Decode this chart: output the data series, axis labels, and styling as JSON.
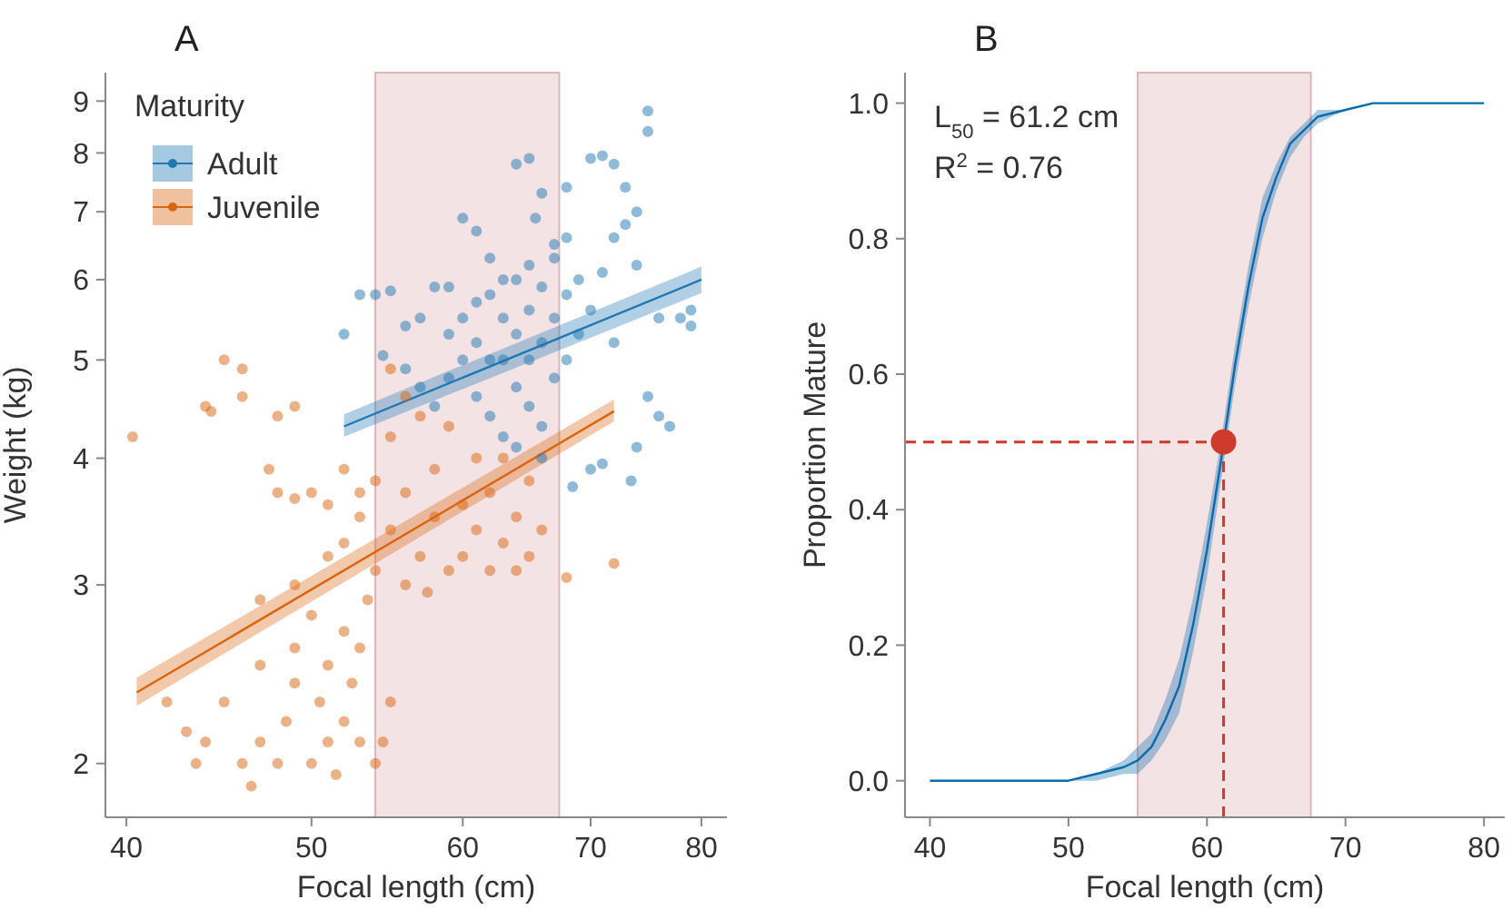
{
  "chart_data": [
    {
      "type": "scatter",
      "title": "A",
      "xlabel": "Focal length (cm)",
      "ylabel": "Weight (kg)",
      "log": "xy",
      "xlim": [
        39,
        82.5
      ],
      "xticks": [
        40,
        50,
        60,
        70,
        80
      ],
      "ylim": [
        1.77,
        9.6
      ],
      "yticks": [
        2,
        3,
        4,
        5,
        6,
        7,
        8,
        9
      ],
      "grid": false,
      "legend": "top left",
      "legend_title": "Maturity",
      "bands": [
        {
          "axis": "x",
          "from": 54,
          "to": 67.4,
          "color": "#f4e3e5"
        }
      ],
      "series": [
        {
          "name": "Adult",
          "color": "#1f78b4",
          "marker": "circle",
          "x": [
            52,
            53,
            54,
            55,
            54.5,
            56,
            57,
            58,
            59,
            60,
            61,
            62,
            64,
            65,
            66,
            65.5,
            67,
            68,
            70,
            71,
            72,
            73,
            74,
            75,
            75,
            73,
            72,
            74,
            76,
            78,
            79,
            79,
            76,
            77,
            74,
            71,
            70,
            73.5,
            68.5,
            75,
            72,
            70,
            69,
            71,
            68,
            58,
            59,
            60,
            60,
            61,
            61,
            62,
            62,
            63,
            63,
            63,
            64,
            64,
            64,
            64,
            65,
            65,
            65,
            66,
            66,
            66,
            67,
            67,
            68,
            68,
            69,
            57,
            56,
            59,
            62,
            63,
            65,
            66,
            67,
            61
          ],
          "values": [
            5.3,
            5.8,
            5.8,
            5.85,
            5.05,
            5.4,
            5.5,
            5.9,
            5.9,
            6.9,
            6.7,
            6.3,
            7.8,
            7.9,
            7.3,
            6.9,
            6.5,
            7.4,
            7.9,
            7.95,
            7.8,
            7.4,
            7.0,
            8.8,
            8.4,
            6.8,
            6.6,
            6.2,
            5.5,
            5.5,
            5.6,
            5.4,
            4.4,
            4.3,
            4.1,
            3.95,
            3.9,
            3.8,
            3.75,
            4.6,
            5.2,
            5.6,
            6.0,
            6.1,
            6.6,
            4.5,
            4.8,
            5.0,
            5.5,
            4.6,
            5.2,
            4.4,
            5.8,
            4.2,
            5.0,
            5.5,
            4.1,
            4.7,
            5.3,
            6.0,
            4.5,
            5.0,
            5.6,
            4.3,
            5.2,
            5.9,
            4.8,
            5.5,
            5.0,
            5.8,
            5.3,
            4.7,
            4.9,
            5.3,
            5.0,
            6.0,
            6.2,
            4.0,
            6.3,
            5.7
          ]
        },
        {
          "name": "Juvenile",
          "color": "#d9650f",
          "marker": "circle",
          "x": [
            40.3,
            44,
            44.3,
            45,
            46,
            46,
            48,
            49,
            47.5,
            48,
            49,
            42,
            43,
            43.5,
            44,
            45,
            46,
            46.5,
            47,
            47,
            48,
            48.5,
            49,
            49,
            50,
            50,
            50.5,
            51,
            51,
            51.5,
            52,
            52,
            52.5,
            53,
            53,
            53.5,
            54,
            55,
            54.5,
            49,
            47,
            51,
            51,
            52,
            52,
            53,
            54,
            54,
            55,
            55,
            56,
            56,
            57,
            57,
            58,
            58,
            59,
            59,
            60,
            60,
            61,
            61,
            62,
            62,
            63,
            63,
            64,
            64,
            65,
            65,
            66,
            68,
            72,
            56,
            55,
            53,
            50,
            57.5
          ],
          "values": [
            4.2,
            4.5,
            4.45,
            5.0,
            4.9,
            4.6,
            4.4,
            4.5,
            3.9,
            3.7,
            3.65,
            2.3,
            2.15,
            2.0,
            2.1,
            2.3,
            2.0,
            1.9,
            2.1,
            2.5,
            2.0,
            2.2,
            2.4,
            2.6,
            2.0,
            2.8,
            2.3,
            2.1,
            2.5,
            1.95,
            2.2,
            2.7,
            2.4,
            2.1,
            2.6,
            2.9,
            2.0,
            2.3,
            2.1,
            3.0,
            2.9,
            3.2,
            3.6,
            3.9,
            3.3,
            3.5,
            3.8,
            3.1,
            3.4,
            4.2,
            3.0,
            3.7,
            3.2,
            4.4,
            3.5,
            3.9,
            3.1,
            4.3,
            3.6,
            3.2,
            4.0,
            3.4,
            3.1,
            3.7,
            3.3,
            4.0,
            3.5,
            3.1,
            3.8,
            3.2,
            3.4,
            3.05,
            3.15,
            4.6,
            4.9,
            3.7,
            3.7,
            2.95
          ]
        },
        {
          "type": "line",
          "color": "#1f78b4",
          "x": [
            52,
            80
          ],
          "values": [
            4.3,
            6.0
          ],
          "lower": [
            4.2,
            5.82
          ],
          "upper": [
            4.42,
            6.18
          ]
        },
        {
          "type": "line",
          "color": "#d9650f",
          "x": [
            40.5,
            72
          ],
          "values": [
            2.35,
            4.45
          ],
          "lower": [
            2.28,
            4.35
          ],
          "upper": [
            2.43,
            4.57
          ]
        }
      ]
    },
    {
      "type": "line",
      "title": "B",
      "xlabel": "Focal length (cm)",
      "ylabel": "Proportion Mature",
      "xlim": [
        38.2,
        81.5
      ],
      "xticks": [
        40,
        50,
        60,
        70,
        80
      ],
      "ylim": [
        -0.054,
        1.045
      ],
      "yticks": [
        {
          "value": 0,
          "label": "0.0"
        },
        {
          "value": 0.2,
          "label": "0.2"
        },
        {
          "value": 0.4,
          "label": "0.4"
        },
        {
          "value": 0.6,
          "label": "0.6"
        },
        {
          "value": 0.8,
          "label": "0.8"
        },
        {
          "value": 1,
          "label": "1.0"
        }
      ],
      "grid": false,
      "annotations": [
        "L$_{50}$ = 61.2 cm",
        "R$^{2}$ = 0.76"
      ],
      "bands": [
        {
          "axis": "x",
          "from": 55,
          "to": 67.5,
          "color": "#f4e3e5"
        }
      ],
      "ref_lines": [
        {
          "axis": "y",
          "value": 0.5,
          "color": "#d03a2a",
          "line_style": "dashed"
        },
        {
          "axis": "x",
          "value": 61.2,
          "color": "#d03a2a",
          "line_style": "dashed"
        }
      ],
      "series": [
        {
          "color": "#0a6aad",
          "x": [
            40,
            45,
            50,
            52,
            54,
            55,
            56,
            57,
            58,
            59,
            60,
            61,
            62,
            63,
            64,
            65,
            66,
            67,
            68,
            70,
            72,
            75,
            80
          ],
          "values": [
            0,
            0,
            0,
            0.01,
            0.02,
            0.03,
            0.05,
            0.09,
            0.14,
            0.23,
            0.34,
            0.47,
            0.61,
            0.73,
            0.83,
            0.89,
            0.94,
            0.96,
            0.98,
            0.99,
            1,
            1,
            1
          ],
          "lower": [
            0,
            0,
            0,
            0,
            0.01,
            0.01,
            0.03,
            0.06,
            0.1,
            0.19,
            0.3,
            0.44,
            0.58,
            0.7,
            0.8,
            0.87,
            0.92,
            0.95,
            0.97,
            0.99,
            1,
            1,
            1
          ],
          "upper": [
            0,
            0,
            0,
            0.01,
            0.03,
            0.05,
            0.07,
            0.12,
            0.18,
            0.27,
            0.38,
            0.5,
            0.64,
            0.76,
            0.86,
            0.91,
            0.95,
            0.97,
            0.99,
            0.99,
            1,
            1,
            1
          ]
        },
        {
          "type": "scatter",
          "marker": "circle",
          "color": "#d03a2a",
          "x": [
            61.2
          ],
          "values": [
            0.5
          ]
        }
      ]
    }
  ]
}
